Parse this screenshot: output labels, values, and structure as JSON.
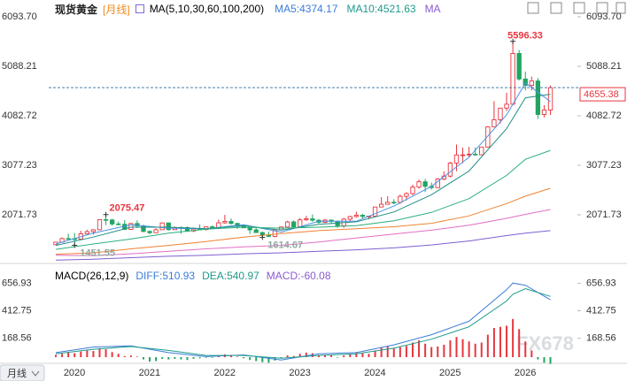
{
  "chart_data": [
    {
      "type": "candlestick",
      "title": "现货黄金",
      "subtitle": "[月线]",
      "indicator": "MA(5,10,30,60,100,200)",
      "legend": [
        {
          "label": "MA5:4374.17",
          "color": "#3b7dd8"
        },
        {
          "label": "MA10:4521.63",
          "color": "#1f9a8a"
        },
        {
          "label": "MA",
          "color": "#8a5cd0"
        }
      ],
      "categories": [
        null,
        "2020",
        null,
        null,
        null,
        null,
        null,
        null,
        null,
        null,
        null,
        null,
        null,
        "2021",
        null,
        null,
        null,
        null,
        null,
        null,
        null,
        null,
        null,
        null,
        null,
        "2022",
        null,
        null,
        null,
        null,
        null,
        null,
        null,
        null,
        null,
        null,
        null,
        "2023",
        null,
        null,
        null,
        null,
        null,
        null,
        null,
        null,
        null,
        null,
        null,
        "2024",
        null,
        null,
        null,
        null,
        null,
        null,
        null,
        null,
        null,
        null,
        null,
        "2025",
        null,
        null,
        null,
        null,
        null,
        null,
        null,
        null,
        null,
        null,
        null,
        "2026",
        null,
        null,
        null,
        null,
        null,
        null
      ],
      "open": [
        1464,
        1517,
        1589,
        1585,
        1577,
        1686,
        1730,
        1768,
        1975,
        1967,
        1886,
        1879,
        1776,
        1895,
        1848,
        1734,
        1708,
        1769,
        1907,
        1770,
        1814,
        1813,
        1743,
        1783,
        1774,
        1829,
        1797,
        1909,
        1937,
        1897,
        1837,
        1807,
        1766,
        1711,
        1660,
        1633,
        1768,
        1824,
        1928,
        1827,
        1969,
        1990,
        1962,
        1919,
        1965,
        1940,
        1848,
        1983,
        2036,
        2063,
        2039,
        2044,
        2230,
        2286,
        2327,
        2326,
        2447,
        2503,
        2634,
        2743,
        2650,
        2624,
        2798,
        2858,
        3124,
        3288,
        3289,
        3303,
        3290,
        3448,
        3858,
        4003,
        4239,
        4319,
        5350,
        4830,
        4700,
        4790,
        4110,
        4200
      ],
      "high": [
        1525,
        1611,
        1689,
        1703,
        1747,
        1765,
        1779,
        1984,
        2075.47,
        1992,
        1933,
        1965,
        1906,
        1959,
        1872,
        1755,
        1798,
        1913,
        1917,
        1832,
        1834,
        1834,
        1814,
        1877,
        1831,
        1853,
        1974,
        2070,
        1998,
        1910,
        1880,
        1814,
        1808,
        1735,
        1730,
        1786,
        1833,
        1949,
        1959,
        2009,
        2049,
        2079,
        1983,
        1987,
        1966,
        1953,
        2009,
        2052,
        2135,
        2088,
        2052,
        2236,
        2431,
        2450,
        2387,
        2483,
        2531,
        2685,
        2790,
        2801,
        2726,
        2817,
        2956,
        3149,
        3500,
        3435,
        3451,
        3439,
        3453,
        3871,
        4381,
        4245,
        4550,
        5596.33,
        5420,
        4980,
        4880,
        4850,
        4300,
        4700
      ],
      "low": [
        1459,
        1517,
        1563,
        1451.55,
        1567,
        1670,
        1671,
        1757,
        1863,
        1848,
        1860,
        1764,
        1765,
        1802,
        1717,
        1677,
        1705,
        1766,
        1750,
        1767,
        1688,
        1721,
        1721,
        1759,
        1753,
        1780,
        1782,
        1890,
        1872,
        1787,
        1805,
        1681,
        1709,
        1614.67,
        1617,
        1616,
        1765,
        1823,
        1804,
        1809,
        1949,
        1932,
        1893,
        1903,
        1884,
        1810,
        1810,
        1931,
        2016,
        2001,
        1984,
        2039,
        2228,
        2277,
        2286,
        2293,
        2364,
        2471,
        2603,
        2536,
        2583,
        2614,
        2772,
        2833,
        2957,
        3121,
        3248,
        3268,
        3281,
        3436,
        3858,
        3927,
        4180,
        4300,
        4800,
        4600,
        4600,
        4020,
        4050,
        4100
      ],
      "close": [
        1517,
        1589,
        1585,
        1577,
        1686,
        1730,
        1768,
        1975,
        1967,
        1886,
        1879,
        1776,
        1895,
        1848,
        1734,
        1708,
        1769,
        1907,
        1770,
        1814,
        1813,
        1743,
        1783,
        1774,
        1829,
        1797,
        1909,
        1937,
        1897,
        1837,
        1807,
        1766,
        1711,
        1660,
        1633,
        1768,
        1824,
        1928,
        1827,
        1969,
        1990,
        1962,
        1919,
        1965,
        1940,
        1848,
        1983,
        2036,
        2063,
        2039,
        2044,
        2230,
        2286,
        2327,
        2326,
        2447,
        2503,
        2634,
        2743,
        2650,
        2624,
        2798,
        2858,
        3124,
        3288,
        3289,
        3303,
        3290,
        3448,
        3858,
        4003,
        4239,
        4319,
        5350,
        4830,
        4700,
        4790,
        4110,
        4200,
        4655.38
      ],
      "up_color": "#e8363f",
      "down_color": "#23a562",
      "series": [
        {
          "color": "#4a93e6",
          "x": [
            0,
            6,
            12,
            18,
            24,
            30,
            36,
            42,
            48,
            54,
            60,
            66,
            72,
            75,
            79
          ],
          "values": [
            1480,
            1700,
            1870,
            1800,
            1790,
            1870,
            1720,
            1940,
            1940,
            2250,
            2650,
            3240,
            4100,
            4750,
            4374.17
          ]
        },
        {
          "color": "#1f8f86",
          "x": [
            0,
            6,
            12,
            18,
            24,
            30,
            36,
            42,
            48,
            54,
            60,
            66,
            72,
            75,
            79
          ],
          "values": [
            1450,
            1620,
            1820,
            1820,
            1790,
            1850,
            1760,
            1880,
            1930,
            2130,
            2480,
            2960,
            3820,
            4450,
            4521.63
          ]
        },
        {
          "color": "#2bb07c",
          "x": [
            0,
            6,
            12,
            18,
            24,
            30,
            36,
            42,
            48,
            54,
            60,
            66,
            72,
            75,
            79
          ],
          "values": [
            1370,
            1480,
            1580,
            1700,
            1780,
            1820,
            1800,
            1820,
            1850,
            1950,
            2120,
            2400,
            2870,
            3200,
            3380
          ]
        },
        {
          "color": "#f08232",
          "x": [
            0,
            6,
            12,
            18,
            24,
            30,
            36,
            42,
            48,
            54,
            60,
            66,
            72,
            75,
            79
          ],
          "values": [
            1270,
            1300,
            1380,
            1450,
            1530,
            1620,
            1690,
            1750,
            1790,
            1830,
            1900,
            2050,
            2300,
            2450,
            2610
          ]
        },
        {
          "color": "#e36fc4",
          "x": [
            0,
            6,
            12,
            18,
            24,
            30,
            36,
            42,
            48,
            54,
            60,
            66,
            72,
            75,
            79
          ],
          "values": [
            1250,
            1240,
            1280,
            1330,
            1380,
            1420,
            1450,
            1520,
            1600,
            1680,
            1760,
            1860,
            2000,
            2080,
            2180
          ]
        },
        {
          "color": "#7d5fd3",
          "x": [
            0,
            6,
            12,
            18,
            24,
            30,
            36,
            42,
            48,
            54,
            60,
            66,
            72,
            75,
            79
          ],
          "values": [
            1150,
            1170,
            1200,
            1230,
            1250,
            1280,
            1300,
            1330,
            1360,
            1400,
            1460,
            1540,
            1650,
            1700,
            1750
          ]
        }
      ],
      "ylim": [
        1138,
        6130
      ],
      "yticks": [
        {
          "value": 6093.7,
          "label": "6093.70"
        },
        5088.21,
        4082.72,
        3077.23,
        2071.73
      ],
      "grid": false,
      "button": "月线",
      "watermark": "FX678"
    },
    {
      "type": "macd",
      "title": "MACD(26,12,9)",
      "legend": [
        {
          "label": "DIFF:510.93",
          "color": "#3b7dd8"
        },
        {
          "label": "DEA:540.97",
          "color": "#1f9a8a"
        },
        {
          "label": "MACD:-60.08",
          "color": "#8a5cd0"
        }
      ],
      "histogram": [
        20,
        30,
        40,
        35,
        50,
        60,
        55,
        80,
        70,
        45,
        30,
        10,
        15,
        5,
        -20,
        -40,
        -35,
        -15,
        -20,
        -15,
        -20,
        -25,
        -15,
        -10,
        -5,
        -5,
        10,
        25,
        20,
        5,
        -10,
        -25,
        -35,
        -45,
        -50,
        -30,
        -10,
        15,
        10,
        30,
        40,
        35,
        20,
        20,
        15,
        -5,
        15,
        30,
        45,
        35,
        30,
        60,
        90,
        95,
        80,
        90,
        100,
        130,
        150,
        120,
        90,
        95,
        110,
        150,
        180,
        160,
        140,
        120,
        130,
        200,
        260,
        270,
        280,
        340,
        250,
        140,
        60,
        -20,
        -50,
        -60.08
      ],
      "series": [
        {
          "color": "#3b7dd8",
          "x": [
            0,
            6,
            12,
            18,
            24,
            30,
            36,
            42,
            48,
            54,
            60,
            66,
            72,
            73,
            75,
            79
          ],
          "values": [
            40,
            90,
            100,
            40,
            5,
            20,
            -25,
            30,
            40,
            110,
            200,
            320,
            600,
            660,
            640,
            510.93
          ]
        },
        {
          "color": "#1f9a8a",
          "x": [
            0,
            6,
            12,
            18,
            24,
            30,
            36,
            42,
            48,
            54,
            60,
            66,
            72,
            73,
            75,
            79
          ],
          "values": [
            30,
            70,
            95,
            60,
            15,
            15,
            -10,
            15,
            30,
            80,
            160,
            270,
            500,
            560,
            610,
            540.97
          ]
        }
      ],
      "up_color": "#e8363f",
      "down_color": "#23a562",
      "ylim": [
        -47,
        819
      ],
      "yticks": [
        656.93,
        412.75,
        168.56
      ]
    }
  ]
}
